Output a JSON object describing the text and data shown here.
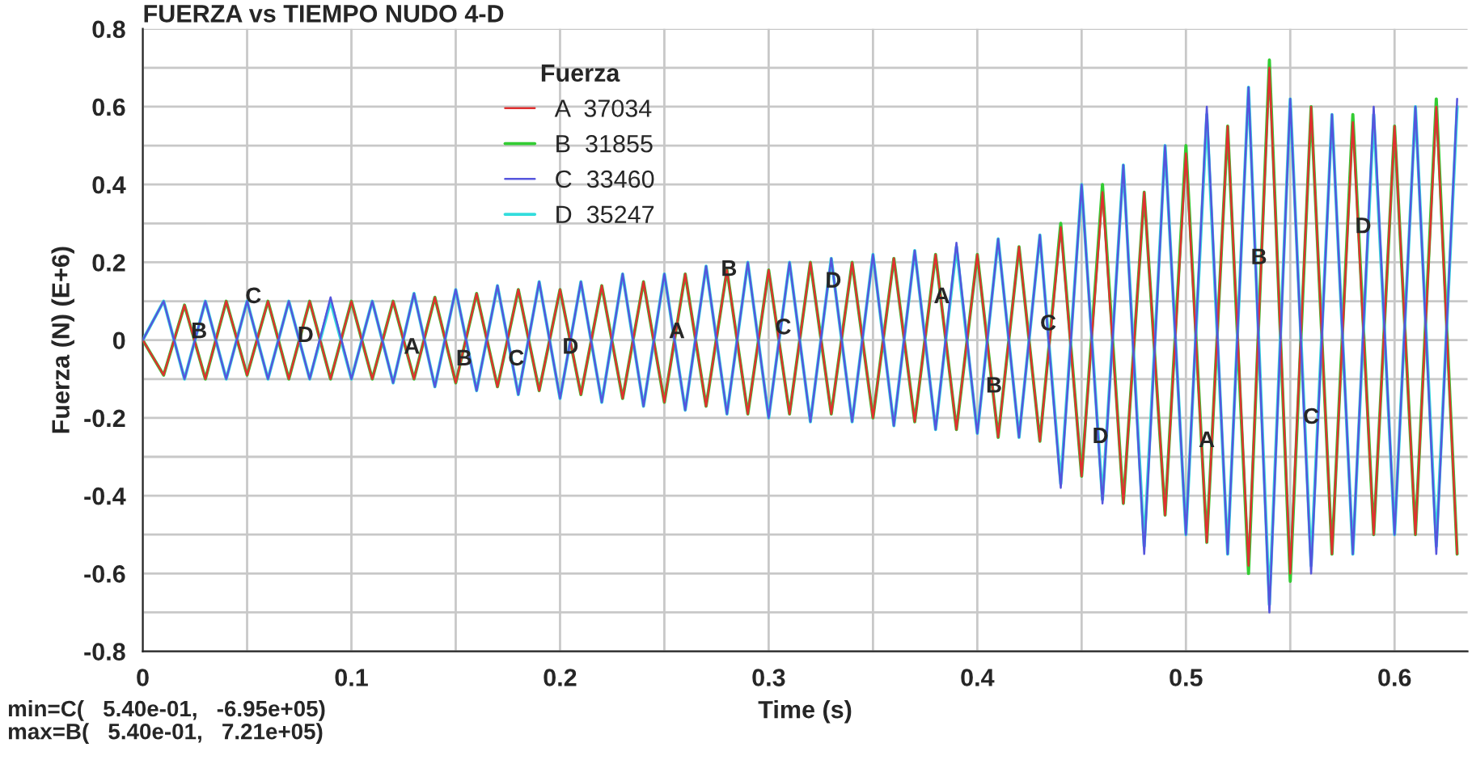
{
  "chart_data": {
    "type": "line",
    "title": "FUERZA vs TIEMPO NUDO 4-D",
    "xlabel": "Time (s)",
    "ylabel": "Fuerza (N) (E+6)",
    "legend_title": "Fuerza",
    "x": [
      0,
      0.01,
      0.02,
      0.03,
      0.04,
      0.05,
      0.06,
      0.07,
      0.08,
      0.09,
      0.1,
      0.11,
      0.12,
      0.13,
      0.14,
      0.15,
      0.16,
      0.17,
      0.18,
      0.19,
      0.2,
      0.21,
      0.22,
      0.23,
      0.24,
      0.25,
      0.26,
      0.27,
      0.28,
      0.29,
      0.3,
      0.31,
      0.32,
      0.33,
      0.34,
      0.35,
      0.36,
      0.37,
      0.38,
      0.39,
      0.4,
      0.41,
      0.42,
      0.43,
      0.44,
      0.45,
      0.46,
      0.47,
      0.48,
      0.49,
      0.5,
      0.51,
      0.52,
      0.53,
      0.54,
      0.55,
      0.56,
      0.57,
      0.58,
      0.59,
      0.6,
      0.61,
      0.62,
      0.63
    ],
    "series": [
      {
        "name": "A  37034",
        "color": "#e03030",
        "values": [
          0,
          -0.09,
          0.09,
          -0.1,
          0.1,
          -0.09,
          0.1,
          -0.1,
          0.1,
          -0.1,
          0.1,
          -0.1,
          0.1,
          -0.1,
          0.11,
          -0.11,
          0.12,
          -0.12,
          0.13,
          -0.13,
          0.13,
          -0.14,
          0.14,
          -0.15,
          0.15,
          -0.16,
          0.17,
          -0.17,
          0.18,
          -0.19,
          0.18,
          -0.19,
          0.2,
          -0.19,
          0.2,
          -0.2,
          0.21,
          -0.21,
          0.22,
          -0.23,
          0.22,
          -0.25,
          0.24,
          -0.26,
          0.29,
          -0.35,
          0.38,
          -0.42,
          0.38,
          -0.45,
          0.48,
          -0.52,
          0.55,
          -0.58,
          0.7,
          -0.6,
          0.6,
          -0.55,
          0.56,
          -0.5,
          0.55,
          -0.5,
          0.6,
          -0.55
        ]
      },
      {
        "name": "B  31855",
        "color": "#33cc33",
        "values": [
          0,
          -0.09,
          0.09,
          -0.1,
          0.1,
          -0.09,
          0.1,
          -0.1,
          0.1,
          -0.1,
          0.1,
          -0.1,
          0.1,
          -0.1,
          0.11,
          -0.11,
          0.12,
          -0.12,
          0.13,
          -0.13,
          0.13,
          -0.14,
          0.14,
          -0.15,
          0.15,
          -0.16,
          0.17,
          -0.17,
          0.18,
          -0.19,
          0.18,
          -0.19,
          0.2,
          -0.19,
          0.2,
          -0.2,
          0.21,
          -0.21,
          0.22,
          -0.23,
          0.22,
          -0.25,
          0.24,
          -0.26,
          0.3,
          -0.35,
          0.4,
          -0.42,
          0.38,
          -0.45,
          0.5,
          -0.52,
          0.55,
          -0.6,
          0.72,
          -0.62,
          0.6,
          -0.55,
          0.58,
          -0.5,
          0.55,
          -0.5,
          0.62,
          -0.55
        ]
      },
      {
        "name": "C  33460",
        "color": "#5555dd",
        "values": [
          0,
          0.1,
          -0.1,
          0.1,
          -0.1,
          0.1,
          -0.1,
          0.1,
          -0.1,
          0.11,
          -0.1,
          0.1,
          -0.11,
          0.12,
          -0.12,
          0.13,
          -0.13,
          0.14,
          -0.14,
          0.15,
          -0.15,
          0.15,
          -0.16,
          0.17,
          -0.17,
          0.17,
          -0.18,
          0.19,
          -0.19,
          0.2,
          -0.2,
          0.2,
          -0.21,
          0.21,
          -0.21,
          0.22,
          -0.22,
          0.23,
          -0.23,
          0.25,
          -0.24,
          0.26,
          -0.25,
          0.27,
          -0.38,
          0.4,
          -0.42,
          0.45,
          -0.55,
          0.5,
          -0.5,
          0.6,
          -0.55,
          0.65,
          -0.7,
          0.62,
          -0.6,
          0.58,
          -0.55,
          0.6,
          -0.5,
          0.6,
          -0.55,
          0.62
        ]
      },
      {
        "name": "D  35247",
        "color": "#33dddd",
        "values": [
          0,
          0.1,
          -0.1,
          0.1,
          -0.1,
          0.1,
          -0.1,
          0.1,
          -0.1,
          0.1,
          -0.1,
          0.1,
          -0.11,
          0.12,
          -0.12,
          0.13,
          -0.13,
          0.14,
          -0.14,
          0.15,
          -0.15,
          0.15,
          -0.16,
          0.17,
          -0.17,
          0.17,
          -0.18,
          0.19,
          -0.19,
          0.2,
          -0.2,
          0.2,
          -0.21,
          0.21,
          -0.21,
          0.22,
          -0.22,
          0.23,
          -0.23,
          0.24,
          -0.24,
          0.26,
          -0.25,
          0.27,
          -0.37,
          0.4,
          -0.41,
          0.45,
          -0.53,
          0.5,
          -0.5,
          0.58,
          -0.55,
          0.65,
          -0.68,
          0.62,
          -0.58,
          0.58,
          -0.55,
          0.58,
          -0.5,
          0.6,
          -0.53,
          0.6
        ]
      }
    ],
    "xlim": [
      0,
      0.635
    ],
    "ylim": [
      -0.8,
      0.8
    ],
    "xticks": [
      0,
      {
        "value": 0.05,
        "label": null
      },
      0.1,
      {
        "value": 0.15,
        "label": null
      },
      0.2,
      {
        "value": 0.25,
        "label": null
      },
      0.3,
      {
        "value": 0.35,
        "label": null
      },
      0.4,
      {
        "value": 0.45,
        "label": null
      },
      0.5,
      {
        "value": 0.55,
        "label": null
      },
      0.6
    ],
    "yticks": [
      -0.8,
      {
        "value": -0.7,
        "label": null
      },
      -0.6,
      {
        "value": -0.5,
        "label": null
      },
      -0.4,
      {
        "value": -0.3,
        "label": null
      },
      -0.2,
      {
        "value": -0.1,
        "label": null
      },
      0,
      {
        "value": 0.1,
        "label": null
      },
      0.2,
      {
        "value": 0.3,
        "label": null
      },
      0.4,
      {
        "value": 0.5,
        "label": null
      },
      0.6,
      {
        "value": 0.7,
        "label": null
      },
      0.8
    ],
    "grid": true,
    "legend": "top",
    "line_style": "solid",
    "marker": "none",
    "annotations": [
      {
        "text": "B",
        "x": 0.027,
        "y": 0.02
      },
      {
        "text": "C",
        "x": 0.053,
        "y": 0.11
      },
      {
        "text": "D",
        "x": 0.078,
        "y": 0.01
      },
      {
        "text": "A",
        "x": 0.129,
        "y": -0.02
      },
      {
        "text": "B",
        "x": 0.154,
        "y": -0.05
      },
      {
        "text": "C",
        "x": 0.179,
        "y": -0.05
      },
      {
        "text": "D",
        "x": 0.205,
        "y": -0.02
      },
      {
        "text": "A",
        "x": 0.256,
        "y": 0.02
      },
      {
        "text": "B",
        "x": 0.281,
        "y": 0.18
      },
      {
        "text": "C",
        "x": 0.307,
        "y": 0.03
      },
      {
        "text": "D",
        "x": 0.331,
        "y": 0.15
      },
      {
        "text": "A",
        "x": 0.383,
        "y": 0.11
      },
      {
        "text": "B",
        "x": 0.408,
        "y": -0.12
      },
      {
        "text": "C",
        "x": 0.434,
        "y": 0.04
      },
      {
        "text": "D",
        "x": 0.459,
        "y": -0.25
      },
      {
        "text": "A",
        "x": 0.51,
        "y": -0.26
      },
      {
        "text": "B",
        "x": 0.535,
        "y": 0.21
      },
      {
        "text": "C",
        "x": 0.56,
        "y": -0.2
      },
      {
        "text": "D",
        "x": 0.585,
        "y": 0.29
      },
      "min=C(   5.40e-01,   -6.95e+05)",
      "max=B(   5.40e-01,   7.21e+05)"
    ]
  }
}
